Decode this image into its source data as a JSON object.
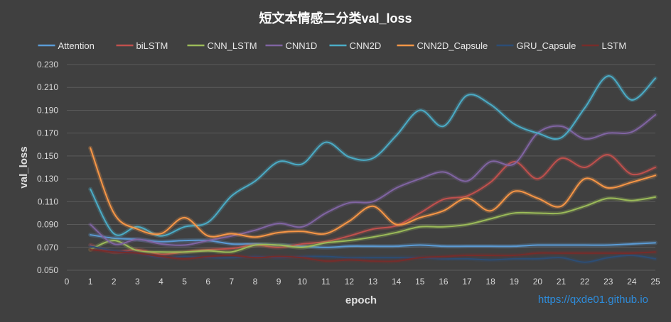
{
  "chart_data": {
    "type": "line",
    "title": "短文本情感二分类val_loss",
    "xlabel": "epoch",
    "ylabel": "val_loss",
    "xlim": [
      0,
      25
    ],
    "ylim": [
      0.05,
      0.23
    ],
    "x_ticks": [
      "0",
      "1",
      "2",
      "3",
      "4",
      "5",
      "6",
      "7",
      "8",
      "9",
      "10",
      "11",
      "12",
      "13",
      "14",
      "15",
      "16",
      "17",
      "18",
      "19",
      "20",
      "21",
      "22",
      "23",
      "24",
      "25"
    ],
    "y_ticks": [
      "0.230",
      "0.210",
      "0.190",
      "0.170",
      "0.150",
      "0.130",
      "0.110",
      "0.090",
      "0.070",
      "0.050"
    ],
    "grid": true,
    "legend_position": "top",
    "x": [
      1,
      2,
      3,
      4,
      5,
      6,
      7,
      8,
      9,
      10,
      11,
      12,
      13,
      14,
      15,
      16,
      17,
      18,
      19,
      20,
      21,
      22,
      23,
      24,
      25
    ],
    "series": [
      {
        "name": "Attention",
        "color": "#5b9bd5",
        "values": [
          0.081,
          0.078,
          0.077,
          0.075,
          0.076,
          0.076,
          0.073,
          0.073,
          0.072,
          0.071,
          0.07,
          0.071,
          0.071,
          0.071,
          0.072,
          0.071,
          0.071,
          0.071,
          0.071,
          0.072,
          0.072,
          0.072,
          0.072,
          0.073,
          0.074
        ]
      },
      {
        "name": "biLSTM",
        "color": "#c0504d",
        "values": [
          0.072,
          0.066,
          0.068,
          0.064,
          0.066,
          0.068,
          0.069,
          0.072,
          0.07,
          0.073,
          0.075,
          0.08,
          0.086,
          0.089,
          0.1,
          0.112,
          0.115,
          0.127,
          0.145,
          0.13,
          0.148,
          0.14,
          0.151,
          0.134,
          0.14
        ]
      },
      {
        "name": "CNN_LSTM",
        "color": "#9bbb59",
        "values": [
          0.068,
          0.076,
          0.067,
          0.066,
          0.066,
          0.067,
          0.066,
          0.072,
          0.072,
          0.07,
          0.074,
          0.076,
          0.079,
          0.083,
          0.088,
          0.088,
          0.09,
          0.095,
          0.1,
          0.1,
          0.1,
          0.106,
          0.113,
          0.111,
          0.114
        ]
      },
      {
        "name": "CNN1D",
        "color": "#8064a2",
        "values": [
          0.09,
          0.073,
          0.077,
          0.073,
          0.072,
          0.076,
          0.08,
          0.085,
          0.091,
          0.088,
          0.1,
          0.109,
          0.11,
          0.122,
          0.13,
          0.136,
          0.128,
          0.145,
          0.143,
          0.17,
          0.176,
          0.165,
          0.17,
          0.171,
          0.186
        ]
      },
      {
        "name": "CNN2D",
        "color": "#4bacc6",
        "values": [
          0.121,
          0.082,
          0.088,
          0.08,
          0.088,
          0.092,
          0.115,
          0.128,
          0.145,
          0.143,
          0.162,
          0.149,
          0.148,
          0.168,
          0.19,
          0.176,
          0.203,
          0.195,
          0.178,
          0.17,
          0.166,
          0.192,
          0.22,
          0.199,
          0.218
        ]
      },
      {
        "name": "CNN2D_Capsule",
        "color": "#f79646",
        "values": [
          0.157,
          0.1,
          0.086,
          0.082,
          0.096,
          0.08,
          0.082,
          0.079,
          0.083,
          0.084,
          0.082,
          0.093,
          0.106,
          0.09,
          0.096,
          0.102,
          0.113,
          0.102,
          0.119,
          0.113,
          0.106,
          0.13,
          0.122,
          0.127,
          0.133
        ]
      },
      {
        "name": "GRU_Capsule",
        "color": "#2c4d75",
        "values": [
          0.071,
          0.067,
          0.065,
          0.061,
          0.062,
          0.061,
          0.061,
          0.062,
          0.061,
          0.062,
          0.062,
          0.061,
          0.061,
          0.061,
          0.061,
          0.06,
          0.06,
          0.059,
          0.06,
          0.06,
          0.061,
          0.057,
          0.061,
          0.063,
          0.06
        ]
      },
      {
        "name": "LSTM",
        "color": "#772c2a",
        "values": [
          0.068,
          0.066,
          0.065,
          0.062,
          0.06,
          0.062,
          0.063,
          0.061,
          0.062,
          0.061,
          0.058,
          0.059,
          0.058,
          0.058,
          0.061,
          0.062,
          0.063,
          0.063,
          0.063,
          0.065,
          0.065,
          0.065,
          0.065,
          0.065,
          0.066
        ]
      }
    ]
  },
  "watermark": "https://qxde01.github.io"
}
